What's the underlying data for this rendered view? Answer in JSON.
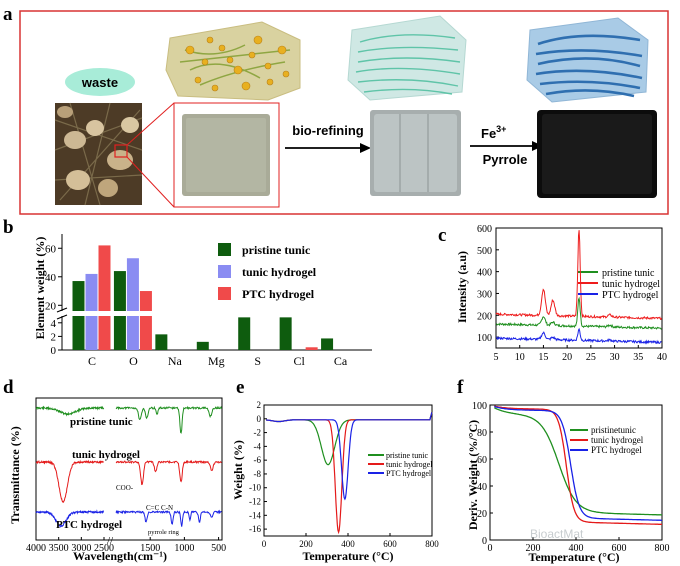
{
  "panel_a": {
    "letter": "a",
    "waste_label": "waste",
    "arrow1_label": "bio-refining",
    "arrow2_label_top": "Fe",
    "arrow2_label_sup": "3+",
    "arrow2_label_bottom": "Pyrrole",
    "colors": {
      "frame": "#d93333",
      "waste_bubble": "#a8ecd8",
      "box1": "#d9d2a0",
      "box2": "#cfe8e4",
      "box3": "#a9cbe6"
    }
  },
  "chart_data": [
    {
      "id": "b",
      "letter": "b",
      "type": "bar",
      "ylabel": "Element weight (%)",
      "categories": [
        "C",
        "O",
        "Na",
        "Mg",
        "S",
        "Cl",
        "Ca"
      ],
      "series": [
        {
          "name": "pristine tunic",
          "color": "#0e5c0e",
          "values": [
            37,
            44,
            2.3,
            1.2,
            4.8,
            4.8,
            1.7
          ]
        },
        {
          "name": "tunic hydrogel",
          "color": "#8a8cf2",
          "values": [
            42,
            53,
            0,
            0,
            0,
            0,
            0
          ]
        },
        {
          "name": "PTC hydrogel",
          "color": "#f04a4a",
          "values": [
            62,
            30,
            0,
            0,
            0,
            0.4,
            0
          ]
        }
      ],
      "yticks_upper": [
        "20",
        "40",
        "60"
      ],
      "yticks_lower": [
        "0",
        "2",
        "4"
      ],
      "axis_break": true
    },
    {
      "id": "c",
      "letter": "c",
      "type": "line",
      "ylabel": "Intensity (a.u)",
      "xlim": [
        5,
        40
      ],
      "ylim": [
        50,
        600
      ],
      "xticks": [
        "5",
        "10",
        "15",
        "20",
        "25",
        "30",
        "35",
        "40"
      ],
      "yticks": [
        "100",
        "200",
        "300",
        "400",
        "500",
        "600"
      ],
      "series": [
        {
          "name": "pristine tunic",
          "color": "#1f8f1f",
          "baseline": 160,
          "peaks": [
            [
              15,
              40
            ],
            [
              17,
              15
            ],
            [
              22.5,
              130
            ],
            [
              29,
              8
            ]
          ]
        },
        {
          "name": "tunic hydrogel",
          "color": "#ee1c1c",
          "baseline": 205,
          "peaks": [
            [
              15,
              120
            ],
            [
              17,
              70
            ],
            [
              22.5,
              400
            ],
            [
              29,
              10
            ]
          ]
        },
        {
          "name": "PTC hydrogel",
          "color": "#1a22e6",
          "baseline": 95,
          "peaks": [
            [
              15,
              30
            ],
            [
              17,
              10
            ],
            [
              22.5,
              50
            ],
            [
              29,
              5
            ]
          ]
        }
      ]
    },
    {
      "id": "d",
      "letter": "d",
      "type": "line",
      "xlabel": "Wavelength(cm⁻¹)",
      "ylabel": "Transmittance (%)",
      "xticks_left": [
        "4000",
        "3500",
        "3000",
        "2500"
      ],
      "xticks_right": [
        "1500",
        "1000",
        "500"
      ],
      "annotations": [
        "COO-",
        "C=C  C-N",
        "pyrrole ring"
      ],
      "series": [
        {
          "name": "pristine tunic",
          "color": "#1f8f1f"
        },
        {
          "name": "tunic hydrogel",
          "color": "#e41a1a"
        },
        {
          "name": "PTC hydrogel",
          "color": "#1a22e6"
        }
      ]
    },
    {
      "id": "e",
      "letter": "e",
      "type": "line",
      "xlabel": "Temperature (°C)",
      "ylabel": "Weight (%)",
      "xlim": [
        0,
        800
      ],
      "ylim": [
        -17,
        2
      ],
      "xticks": [
        "0",
        "200",
        "400",
        "600",
        "800"
      ],
      "yticks": [
        "2",
        "0",
        "-2",
        "-4",
        "-6",
        "-8",
        "-10",
        "-12",
        "-14",
        "-16"
      ],
      "series": [
        {
          "name": "pristine tunic",
          "color": "#1f8f1f",
          "dips": [
            [
              305,
              -6.5,
              45
            ]
          ]
        },
        {
          "name": "tunic hydrogel",
          "color": "#e41a1a",
          "dips": [
            [
              355,
              -16.3,
              22
            ]
          ]
        },
        {
          "name": "PTC hydrogel",
          "color": "#1a22e6",
          "dips": [
            [
              385,
              -11.5,
              22
            ]
          ]
        }
      ]
    },
    {
      "id": "f",
      "letter": "f",
      "type": "line",
      "xlabel": "Temperature (°C)",
      "ylabel": "Deriv. Weight (%/°C)",
      "xlim": [
        0,
        800
      ],
      "ylim": [
        0,
        100
      ],
      "xticks": [
        "0",
        "200",
        "400",
        "600",
        "800"
      ],
      "yticks": [
        "0",
        "20",
        "40",
        "60",
        "80",
        "100"
      ],
      "series": [
        {
          "name": "pristinetunic",
          "color": "#1f8f1f",
          "start": 100,
          "plateau": 93,
          "mid": 320,
          "width": 40,
          "end": 20
        },
        {
          "name": "tunic hydrogel",
          "color": "#e41a1a",
          "start": 100,
          "plateau": 97,
          "mid": 355,
          "width": 18,
          "end": 13
        },
        {
          "name": "PTC hydrogel",
          "color": "#1a22e6",
          "start": 100,
          "plateau": 96,
          "mid": 375,
          "width": 20,
          "end": 16
        }
      ]
    }
  ],
  "watermark_text": "BioactMat"
}
